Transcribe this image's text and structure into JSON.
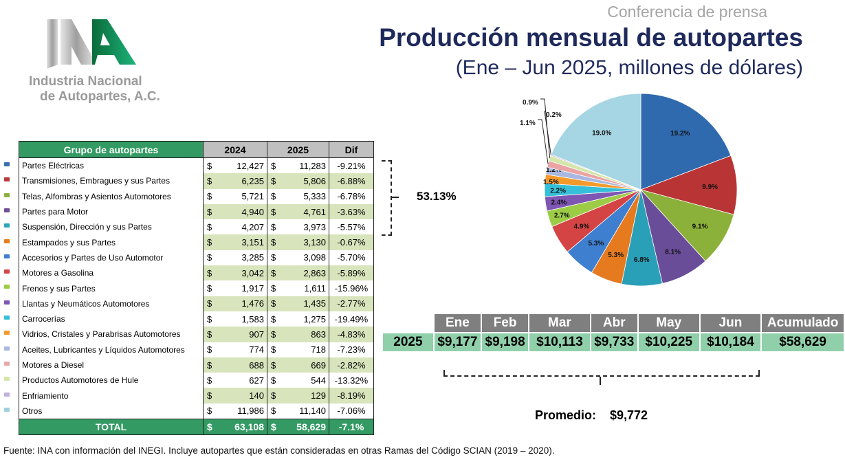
{
  "logo": {
    "text_line1": "Industria Nacional",
    "text_line2": "de Autopartes, A.C.",
    "mark": "INA"
  },
  "header": {
    "kicker": "Conferencia de prensa",
    "title": "Producción mensual de autopartes",
    "subtitle": "(Ene – Jun 2025, millones de dólares)"
  },
  "table": {
    "headers": [
      "Grupo de autopartes",
      "2024",
      "2025",
      "Dif"
    ],
    "currency": "$",
    "rows": [
      {
        "name": "Partes Eléctricas",
        "v2024": "12,427",
        "v2025": "11,283",
        "dif": "-9.21%",
        "color": "#3a6fb0"
      },
      {
        "name": "Transmisiones, Embragues y sus Partes",
        "v2024": "6,235",
        "v2025": "5,806",
        "dif": "-6.88%",
        "color": "#b83a3a"
      },
      {
        "name": "Telas, Alfombras y Asientos Automotores",
        "v2024": "5,721",
        "v2025": "5,333",
        "dif": "-6.78%",
        "color": "#8db03e"
      },
      {
        "name": "Partes para Motor",
        "v2024": "4,940",
        "v2025": "4,761",
        "dif": "-3.63%",
        "color": "#6f4e9a"
      },
      {
        "name": "Suspensión, Dirección y sus Partes",
        "v2024": "4,207",
        "v2025": "3,973",
        "dif": "-5.57%",
        "color": "#2fa3bf"
      },
      {
        "name": "Estampados y sus Partes",
        "v2024": "3,151",
        "v2025": "3,130",
        "dif": "-0.67%",
        "color": "#e67d22"
      },
      {
        "name": "Accesorios y Partes de Uso Automotor",
        "v2024": "3,285",
        "v2025": "3,098",
        "dif": "-5.70%",
        "color": "#3f7fd0"
      },
      {
        "name": "Motores a Gasolina",
        "v2024": "3,042",
        "v2025": "2,863",
        "dif": "-5.89%",
        "color": "#d64545"
      },
      {
        "name": "Frenos y sus Partes",
        "v2024": "1,917",
        "v2025": "1,611",
        "dif": "-15.96%",
        "color": "#9ccc45"
      },
      {
        "name": "Llantas y Neumáticos Automotores",
        "v2024": "1,476",
        "v2025": "1,435",
        "dif": "-2.77%",
        "color": "#7e56b3"
      },
      {
        "name": "Carrocerías",
        "v2024": "1,583",
        "v2025": "1,275",
        "dif": "-19.49%",
        "color": "#36bfd8"
      },
      {
        "name": "Vidrios, Cristales y Parabrisas Automotores",
        "v2024": "907",
        "v2025": "863",
        "dif": "-4.83%",
        "color": "#f39a2b"
      },
      {
        "name": "Aceites, Lubricantes y Líquidos Automotores",
        "v2024": "774",
        "v2025": "718",
        "dif": "-7.23%",
        "color": "#a9b8e0"
      },
      {
        "name": "Motores a Diesel",
        "v2024": "688",
        "v2025": "669",
        "dif": "-2.82%",
        "color": "#e8a8a8"
      },
      {
        "name": "Productos Automotores de Hule",
        "v2024": "627",
        "v2025": "544",
        "dif": "-13.32%",
        "color": "#d4e6a8"
      },
      {
        "name": "Enfriamiento",
        "v2024": "140",
        "v2025": "129",
        "dif": "-8.19%",
        "color": "#bfb0dc"
      },
      {
        "name": "Otros",
        "v2024": "11,986",
        "v2025": "11,140",
        "dif": "-7.06%",
        "color": "#9fd0e0"
      }
    ],
    "total": {
      "label": "TOTAL",
      "v2024": "63,108",
      "v2025": "58,629",
      "dif": "-7.1%"
    }
  },
  "top5_share": "53.13%",
  "chart_data": {
    "type": "pie",
    "values": [
      19.2,
      9.9,
      9.1,
      8.1,
      6.8,
      5.3,
      5.3,
      4.9,
      2.7,
      2.4,
      2.2,
      1.5,
      1.2,
      1.1,
      0.9,
      0.2,
      19.0
    ],
    "labels": [
      "19.2%",
      "9.9%",
      "9.1%",
      "8.1%",
      "6.8%",
      "5.3%",
      "5.3%",
      "4.9%",
      "2.7%",
      "2.4%",
      "2.2%",
      "1.5%",
      "1.2%",
      "1.1%",
      "0.9%",
      "0.2%",
      "19.0%"
    ],
    "colors": [
      "#2f6aae",
      "#b93434",
      "#8cb13a",
      "#6a4d98",
      "#2a9fb8",
      "#e57a1f",
      "#3f7fd0",
      "#d54444",
      "#9ccc45",
      "#7e56b3",
      "#36bfd8",
      "#f39a2b",
      "#a9b8e0",
      "#eaa4a4",
      "#d4e6a8",
      "#bfb0dc",
      "#a6d5e4"
    ],
    "start": "top",
    "direction": "clockwise"
  },
  "monthly": {
    "row_label": "2025",
    "months": [
      "Ene",
      "Feb",
      "Mar",
      "Abr",
      "May",
      "Jun",
      "Acumulado"
    ],
    "values": [
      "$9,177",
      "$9,198",
      "$10,113",
      "$9,733",
      "$10,225",
      "$10,184",
      "$58,629"
    ]
  },
  "promedio": {
    "label": "Promedio:",
    "value": "$9,772"
  },
  "footer": "Fuente: INA con información del INEGI. Incluye autopartes que están consideradas en otras Ramas del Código SCIAN (2019 – 2020)."
}
